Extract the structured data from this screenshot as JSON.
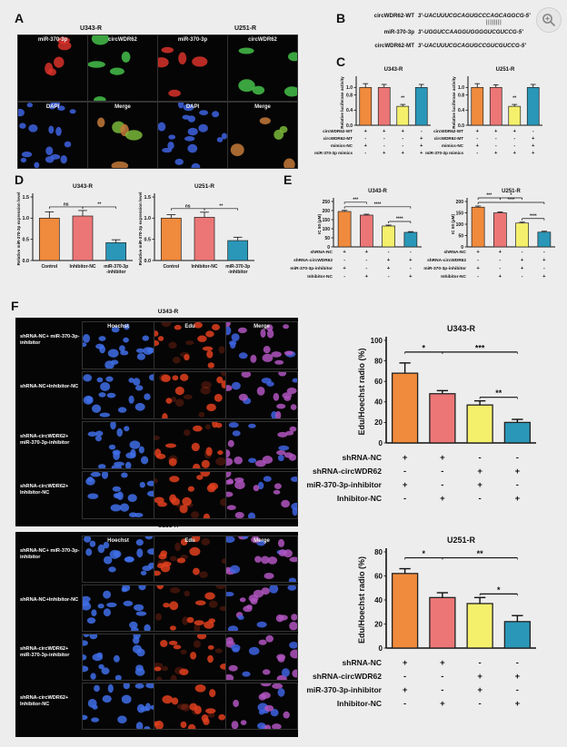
{
  "panels": {
    "A": {
      "letter": "A",
      "lines": [
        {
          "title": "U343-R"
        },
        {
          "title": "U251-R"
        }
      ],
      "labels": [
        "miR-370-3p",
        "circWDR62",
        "DAPI",
        "Merge"
      ]
    },
    "B": {
      "letter": "B",
      "seqs": [
        {
          "name": "circWDR62-WT",
          "seq": "3'-UACUUUCGCAGUGCCCAGCAGGCG-5'"
        },
        {
          "name": "miR-370-3p",
          "seq": "3'-UGGUCCAAGGUGGGGUCGUCCG-5'"
        },
        {
          "name": "circWDR62-MT",
          "seq": "3'-UACUUUCGCAGUGCCGUCGUCCG-5'"
        }
      ]
    },
    "C": {
      "letter": "C"
    },
    "D": {
      "letter": "D"
    },
    "E": {
      "letter": "E"
    },
    "F": {
      "letter": "F",
      "microtitles": [
        "U343-R",
        "U251-R"
      ],
      "cols": [
        "Hoechst",
        "Edu",
        "Merge"
      ],
      "rows": [
        "shRNA-NC+ miR-370-3p-inhibitor",
        "shRNA-NC+Inhibitor-NC",
        "shRNA-circWDR62+ miR-370-3p-inhibitor",
        "shRNA-circWDR62+ Inhibitor-NC"
      ]
    }
  },
  "chart_data": [
    {
      "id": "C1",
      "type": "bar",
      "title": "U343-R",
      "ylabel": "Relative luciferase activity",
      "ylim": [
        0,
        1.2
      ],
      "yticks": [
        "0.0",
        "0.4",
        "0.8",
        "1.0"
      ],
      "values": [
        1.0,
        1.0,
        0.5,
        1.0
      ],
      "errors": [
        0.1,
        0.08,
        0.05,
        0.08
      ],
      "colors": [
        "#f08a3c",
        "#ec7676",
        "#f5f06c",
        "#2a97b8"
      ],
      "rows": [
        {
          "name": "circWDR62-WT",
          "signs": [
            "+",
            "+",
            "+",
            "-"
          ]
        },
        {
          "name": "circWDR62-MT",
          "signs": [
            "-",
            "-",
            "-",
            "+"
          ]
        },
        {
          "name": "mimics-NC",
          "signs": [
            "+",
            "-",
            "-",
            "+"
          ]
        },
        {
          "name": "miR-370-3p mimics",
          "signs": [
            "-",
            "+",
            "+",
            "+"
          ]
        }
      ],
      "sig": [
        {
          "text": "**"
        }
      ]
    },
    {
      "id": "C2",
      "type": "bar",
      "title": "U251-R",
      "ylabel": "Relative luciferase activity",
      "ylim": [
        0,
        1.2
      ],
      "yticks": [
        "0.0",
        "0.4",
        "0.8",
        "1.0"
      ],
      "values": [
        1.0,
        1.0,
        0.5,
        1.0
      ],
      "errors": [
        0.1,
        0.07,
        0.05,
        0.08
      ],
      "colors": [
        "#f08a3c",
        "#ec7676",
        "#f5f06c",
        "#2a97b8"
      ],
      "rows": [
        {
          "name": "circWDR62-WT",
          "signs": [
            "+",
            "+",
            "+",
            "-"
          ]
        },
        {
          "name": "circWDR62-MT",
          "signs": [
            "-",
            "-",
            "-",
            "+"
          ]
        },
        {
          "name": "mimics-NC",
          "signs": [
            "+",
            "-",
            "-",
            "+"
          ]
        },
        {
          "name": "miR-370-3p mimics",
          "signs": [
            "-",
            "+",
            "+",
            "+"
          ]
        }
      ],
      "sig": [
        {
          "text": "**"
        }
      ]
    },
    {
      "id": "D1",
      "type": "bar",
      "title": "U343-R",
      "ylabel": "Relative miR-370-3p expression level",
      "ylim": [
        0,
        1.5
      ],
      "yticks": [
        "0.0",
        "0.5",
        "1.0",
        "1.5"
      ],
      "categories": [
        "Control",
        "Inhibitor-NC",
        "miR-370-3p -inhibitor"
      ],
      "values": [
        1.0,
        1.05,
        0.42
      ],
      "errors": [
        0.15,
        0.13,
        0.07
      ],
      "colors": [
        "#f08a3c",
        "#ec7676",
        "#2a97b8"
      ],
      "sig": [
        {
          "text": "ns"
        },
        {
          "text": "**"
        }
      ]
    },
    {
      "id": "D2",
      "type": "bar",
      "title": "U251-R",
      "ylabel": "Relative miR-370-3p expression level",
      "ylim": [
        0,
        1.5
      ],
      "yticks": [
        "0.0",
        "0.5",
        "1.0",
        "1.5"
      ],
      "categories": [
        "Control",
        "Inhibitor-NC",
        "miR-370-3p -inhibitor"
      ],
      "values": [
        1.0,
        1.02,
        0.47
      ],
      "errors": [
        0.08,
        0.12,
        0.08
      ],
      "colors": [
        "#f08a3c",
        "#ec7676",
        "#2a97b8"
      ],
      "sig": [
        {
          "text": "ns"
        },
        {
          "text": "**"
        }
      ]
    },
    {
      "id": "E1",
      "type": "bar",
      "title": "U343-R",
      "ylabel": "IC 50 (μM)",
      "ylim": [
        0,
        250
      ],
      "yticks": [
        "0",
        "50",
        "100",
        "150",
        "200",
        "250"
      ],
      "values": [
        195,
        175,
        115,
        80
      ],
      "errors": [
        6,
        5,
        5,
        4
      ],
      "colors": [
        "#f08a3c",
        "#ec7676",
        "#f5f06c",
        "#2a97b8"
      ],
      "rows": [
        {
          "name": "shRNA-NC",
          "signs": [
            "+",
            "+",
            "-",
            "-"
          ]
        },
        {
          "name": "shRNA-circWDR62",
          "signs": [
            "-",
            "-",
            "+",
            "+"
          ]
        },
        {
          "name": "miR-370-3p-inhibitor",
          "signs": [
            "+",
            "-",
            "+",
            "-"
          ]
        },
        {
          "name": "Inhibitor-NC",
          "signs": [
            "-",
            "+",
            "-",
            "+"
          ]
        }
      ],
      "sig": [
        {
          "text": "***"
        },
        {
          "text": "****"
        },
        {
          "text": "****"
        }
      ]
    },
    {
      "id": "E2",
      "type": "bar",
      "title": "U251-R",
      "ylabel": "IC 50 (μM)",
      "ylim": [
        0,
        200
      ],
      "yticks": [
        "0",
        "50",
        "100",
        "150",
        "200"
      ],
      "values": [
        175,
        150,
        105,
        65
      ],
      "errors": [
        5,
        4,
        4,
        4
      ],
      "colors": [
        "#f08a3c",
        "#ec7676",
        "#f5f06c",
        "#2a97b8"
      ],
      "rows": [
        {
          "name": "shRNA-NC",
          "signs": [
            "+",
            "+",
            "-",
            "-"
          ]
        },
        {
          "name": "shRNA-circWDR62",
          "signs": [
            "-",
            "-",
            "+",
            "+"
          ]
        },
        {
          "name": "miR-370-3p-inhibitor",
          "signs": [
            "+",
            "-",
            "+",
            "-"
          ]
        },
        {
          "name": "Inhibitor-NC",
          "signs": [
            "-",
            "+",
            "-",
            "+"
          ]
        }
      ],
      "sig": [
        {
          "text": "***"
        },
        {
          "text": "*"
        },
        {
          "text": "****"
        },
        {
          "text": "****"
        }
      ]
    },
    {
      "id": "F1",
      "type": "bar",
      "title": "U343-R",
      "ylabel": "Edu/Hoechst radio (%)",
      "ylim": [
        0,
        100
      ],
      "yticks": [
        "0",
        "20",
        "40",
        "60",
        "80",
        "100"
      ],
      "values": [
        68,
        48,
        37,
        20
      ],
      "errors": [
        10,
        3,
        4,
        3
      ],
      "colors": [
        "#f08a3c",
        "#ec7676",
        "#f5f06c",
        "#2a97b8"
      ],
      "rows": [
        {
          "name": "shRNA-NC",
          "signs": [
            "+",
            "+",
            "-",
            "-"
          ]
        },
        {
          "name": "shRNA-circWDR62",
          "signs": [
            "-",
            "-",
            "+",
            "+"
          ]
        },
        {
          "name": "miR-370-3p-inhibitor",
          "signs": [
            "+",
            "-",
            "+",
            "-"
          ]
        },
        {
          "name": "Inhibitor-NC",
          "signs": [
            "-",
            "+",
            "-",
            "+"
          ]
        }
      ],
      "sig": [
        {
          "text": "*"
        },
        {
          "text": "***"
        },
        {
          "text": "**"
        }
      ]
    },
    {
      "id": "F2",
      "type": "bar",
      "title": "U251-R",
      "ylabel": "Edu/Hoechst radio (%)",
      "ylim": [
        0,
        80
      ],
      "yticks": [
        "0",
        "20",
        "40",
        "60",
        "80"
      ],
      "values": [
        62,
        42,
        37,
        22
      ],
      "errors": [
        4,
        4,
        5,
        5
      ],
      "colors": [
        "#f08a3c",
        "#ec7676",
        "#f5f06c",
        "#2a97b8"
      ],
      "rows": [
        {
          "name": "shRNA-NC",
          "signs": [
            "+",
            "+",
            "-",
            "-"
          ]
        },
        {
          "name": "shRNA-circWDR62",
          "signs": [
            "-",
            "-",
            "+",
            "+"
          ]
        },
        {
          "name": "miR-370-3p-inhibitor",
          "signs": [
            "+",
            "-",
            "+",
            "-"
          ]
        },
        {
          "name": "Inhibitor-NC",
          "signs": [
            "-",
            "+",
            "-",
            "+"
          ]
        }
      ],
      "sig": [
        {
          "text": "*"
        },
        {
          "text": "**"
        },
        {
          "text": "*"
        }
      ]
    }
  ]
}
